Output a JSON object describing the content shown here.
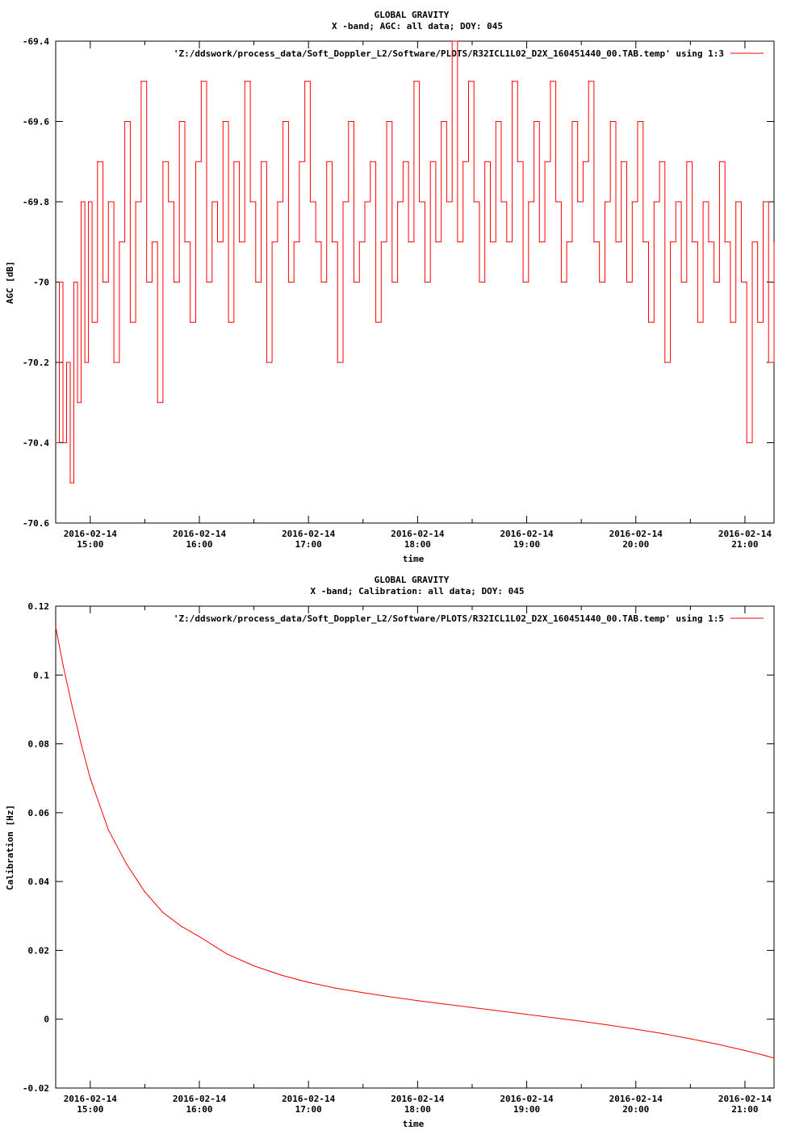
{
  "charts": [
    {
      "title": "GLOBAL GRAVITY",
      "subtitle": "X -band; AGC: all data; DOY: 045",
      "xlabel": "time",
      "ylabel": "AGC [dB]",
      "legend_label": "'Z:/ddswork/process_data/Soft_Doppler_L2/Software/PLOTS/R32ICL1L02_D2X_160451440_00.TAB.temp' using 1:3",
      "x_tick_date": "2016-02-14",
      "x_tick_times": [
        "15:00",
        "16:00",
        "17:00",
        "18:00",
        "19:00",
        "20:00",
        "21:00"
      ],
      "y_tick_labels": [
        "-69.4",
        "-69.6",
        "-69.8",
        "-70",
        "-70.2",
        "-70.4",
        "-70.6"
      ]
    },
    {
      "title": "GLOBAL GRAVITY",
      "subtitle": "X -band; Calibration: all data; DOY: 045",
      "xlabel": "time",
      "ylabel": "Calibration [Hz]",
      "legend_label": "'Z:/ddswork/process_data/Soft_Doppler_L2/Software/PLOTS/R32ICL1L02_D2X_160451440_00.TAB.temp' using 1:5",
      "x_tick_date": "2016-02-14",
      "x_tick_times": [
        "15:00",
        "16:00",
        "17:00",
        "18:00",
        "19:00",
        "20:00",
        "21:00"
      ],
      "y_tick_labels": [
        "0.12",
        "0.1",
        "0.08",
        "0.06",
        "0.04",
        "0.02",
        "0",
        "-0.02"
      ]
    }
  ],
  "chart_data": [
    {
      "type": "line",
      "title": "GLOBAL GRAVITY",
      "subtitle": "X -band; AGC: all data; DOY: 045",
      "xlabel": "time",
      "ylabel": "AGC [dB]",
      "xlim": [
        "2016-02-14 14:41",
        "2016-02-14 21:16"
      ],
      "ylim": [
        -70.6,
        -69.4
      ],
      "x_ticks": [
        "2016-02-14 15:00",
        "2016-02-14 16:00",
        "2016-02-14 17:00",
        "2016-02-14 18:00",
        "2016-02-14 19:00",
        "2016-02-14 20:00",
        "2016-02-14 21:00"
      ],
      "y_ticks": [
        -70.6,
        -70.4,
        -70.2,
        -70,
        -69.8,
        -69.6,
        -69.4
      ],
      "legend_placement": "top-right",
      "grid": false,
      "color": "#ff0000",
      "series": [
        {
          "name": "'Z:/ddswork/process_data/Soft_Doppler_L2/Software/PLOTS/R32ICL1L02_D2X_160451440_00.TAB.temp' using 1:3",
          "x": [
            "14:41",
            "14:43",
            "14:45",
            "14:47",
            "14:49",
            "14:51",
            "14:53",
            "14:55",
            "14:57",
            "14:59",
            "15:01",
            "15:04",
            "15:07",
            "15:10",
            "15:13",
            "15:16",
            "15:19",
            "15:22",
            "15:25",
            "15:28",
            "15:31",
            "15:34",
            "15:37",
            "15:40",
            "15:43",
            "15:46",
            "15:49",
            "15:52",
            "15:55",
            "15:58",
            "16:01",
            "16:04",
            "16:07",
            "16:10",
            "16:13",
            "16:16",
            "16:19",
            "16:22",
            "16:25",
            "16:28",
            "16:31",
            "16:34",
            "16:37",
            "16:40",
            "16:43",
            "16:46",
            "16:49",
            "16:52",
            "16:55",
            "16:58",
            "17:01",
            "17:04",
            "17:07",
            "17:10",
            "17:13",
            "17:16",
            "17:19",
            "17:22",
            "17:25",
            "17:28",
            "17:31",
            "17:34",
            "17:37",
            "17:40",
            "17:43",
            "17:46",
            "17:49",
            "17:52",
            "17:55",
            "17:58",
            "18:01",
            "18:04",
            "18:07",
            "18:10",
            "18:13",
            "18:16",
            "18:19",
            "18:22",
            "18:25",
            "18:28",
            "18:31",
            "18:34",
            "18:37",
            "18:40",
            "18:43",
            "18:46",
            "18:49",
            "18:52",
            "18:55",
            "18:58",
            "19:01",
            "19:04",
            "19:07",
            "19:10",
            "19:13",
            "19:16",
            "19:19",
            "19:22",
            "19:25",
            "19:28",
            "19:31",
            "19:34",
            "19:37",
            "19:40",
            "19:43",
            "19:46",
            "19:49",
            "19:52",
            "19:55",
            "19:58",
            "20:01",
            "20:04",
            "20:07",
            "20:10",
            "20:13",
            "20:16",
            "20:19",
            "20:22",
            "20:25",
            "20:28",
            "20:31",
            "20:34",
            "20:37",
            "20:40",
            "20:43",
            "20:46",
            "20:49",
            "20:52",
            "20:55",
            "20:58",
            "21:01",
            "21:04",
            "21:07",
            "21:10",
            "21:13",
            "21:16"
          ],
          "y": [
            -70.4,
            -70.0,
            -70.4,
            -70.2,
            -70.5,
            -70.0,
            -70.3,
            -69.8,
            -70.2,
            -69.8,
            -70.1,
            -69.7,
            -70.0,
            -69.8,
            -70.2,
            -69.9,
            -69.6,
            -70.1,
            -69.8,
            -69.5,
            -70.0,
            -69.9,
            -70.3,
            -69.7,
            -69.8,
            -70.0,
            -69.6,
            -69.9,
            -70.1,
            -69.7,
            -69.5,
            -70.0,
            -69.8,
            -69.9,
            -69.6,
            -70.1,
            -69.7,
            -69.9,
            -69.5,
            -69.8,
            -70.0,
            -69.7,
            -70.2,
            -69.9,
            -69.8,
            -69.6,
            -70.0,
            -69.9,
            -69.7,
            -69.5,
            -69.8,
            -69.9,
            -70.0,
            -69.7,
            -69.9,
            -70.2,
            -69.8,
            -69.6,
            -70.0,
            -69.9,
            -69.8,
            -69.7,
            -70.1,
            -69.9,
            -69.6,
            -70.0,
            -69.8,
            -69.7,
            -69.9,
            -69.5,
            -69.8,
            -70.0,
            -69.7,
            -69.9,
            -69.6,
            -69.8,
            -69.4,
            -69.9,
            -69.7,
            -69.5,
            -69.8,
            -70.0,
            -69.7,
            -69.9,
            -69.6,
            -69.8,
            -69.9,
            -69.5,
            -69.7,
            -70.0,
            -69.8,
            -69.6,
            -69.9,
            -69.7,
            -69.5,
            -69.8,
            -70.0,
            -69.9,
            -69.6,
            -69.8,
            -69.7,
            -69.5,
            -69.9,
            -70.0,
            -69.8,
            -69.6,
            -69.9,
            -69.7,
            -70.0,
            -69.8,
            -69.6,
            -69.9,
            -70.1,
            -69.8,
            -69.7,
            -70.2,
            -69.9,
            -69.8,
            -70.0,
            -69.7,
            -69.9,
            -70.1,
            -69.8,
            -69.9,
            -70.0,
            -69.7,
            -69.9,
            -70.1,
            -69.8,
            -70.0,
            -70.4,
            -69.9,
            -70.1,
            -69.8,
            -70.2,
            -69.9
          ]
        }
      ]
    },
    {
      "type": "line",
      "title": "GLOBAL GRAVITY",
      "subtitle": "X -band; Calibration: all data; DOY: 045",
      "xlabel": "time",
      "ylabel": "Calibration [Hz]",
      "xlim": [
        "2016-02-14 14:41",
        "2016-02-14 21:16"
      ],
      "ylim": [
        -0.02,
        0.12
      ],
      "x_ticks": [
        "2016-02-14 15:00",
        "2016-02-14 16:00",
        "2016-02-14 17:00",
        "2016-02-14 18:00",
        "2016-02-14 19:00",
        "2016-02-14 20:00",
        "2016-02-14 21:00"
      ],
      "y_ticks": [
        -0.02,
        0,
        0.02,
        0.04,
        0.06,
        0.08,
        0.1,
        0.12
      ],
      "legend_placement": "top-right",
      "grid": false,
      "color": "#ff0000",
      "series": [
        {
          "name": "'Z:/ddswork/process_data/Soft_Doppler_L2/Software/PLOTS/R32ICL1L02_D2X_160451440_00.TAB.temp' using 1:5",
          "x": [
            "14:41",
            "14:45",
            "14:50",
            "14:55",
            "15:00",
            "15:10",
            "15:20",
            "15:30",
            "15:40",
            "15:50",
            "16:00",
            "16:15",
            "16:30",
            "16:45",
            "17:00",
            "17:15",
            "17:30",
            "17:45",
            "18:00",
            "18:15",
            "18:30",
            "18:45",
            "19:00",
            "19:15",
            "19:30",
            "19:45",
            "20:00",
            "20:15",
            "20:30",
            "20:45",
            "21:00",
            "21:10",
            "21:16"
          ],
          "y": [
            0.114,
            0.103,
            0.091,
            0.08,
            0.07,
            0.055,
            0.045,
            0.037,
            0.031,
            0.027,
            0.024,
            0.019,
            0.0155,
            0.0128,
            0.0107,
            0.009,
            0.0077,
            0.0065,
            0.0054,
            0.0044,
            0.0034,
            0.0024,
            0.0014,
            0.0004,
            -0.0006,
            -0.0017,
            -0.0029,
            -0.0042,
            -0.0057,
            -0.0073,
            -0.0091,
            -0.0104,
            -0.0113
          ]
        }
      ]
    }
  ]
}
